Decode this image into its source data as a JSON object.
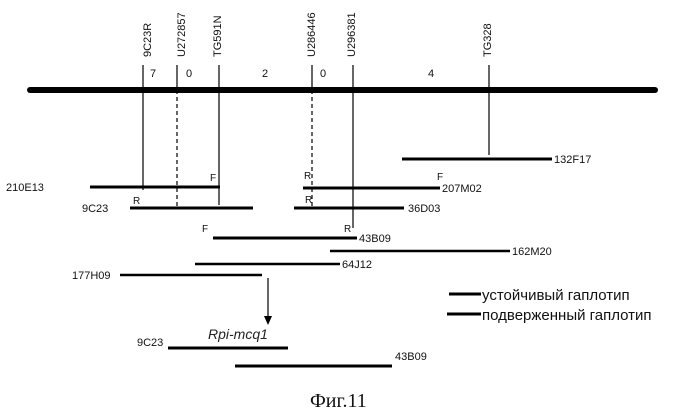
{
  "markers": [
    "9C23R",
    "U272857",
    "TG591N",
    "U286446",
    "U296381",
    "TG328"
  ],
  "recombinants": [
    "7",
    "0",
    "2",
    "0",
    "4"
  ],
  "clones": {
    "c132F17": "132F17",
    "c210E13": "210E13",
    "c207M02": "207M02",
    "c9C23": "9C23",
    "c36D03": "36D03",
    "c43B09": "43B09",
    "c162M20": "162M20",
    "c64J12": "64J12",
    "c177H09": "177H09",
    "c9C23b": "9C23",
    "c43B09b": "43B09"
  },
  "end_marks": {
    "F": "F",
    "R": "R"
  },
  "gene": "Rpi-mcq1",
  "legend": {
    "resistant": "устойчивый гаплотип",
    "susceptible": "подверженный гаплотип"
  },
  "caption": "Фиг.11"
}
